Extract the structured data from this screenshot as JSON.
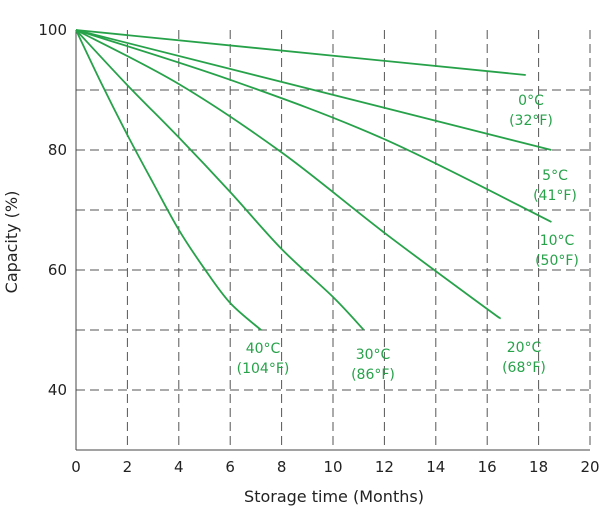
{
  "chart_data": {
    "type": "line",
    "xlabel": "Storage time (Months)",
    "ylabel": "Capacity (%)",
    "xlim": [
      0,
      20
    ],
    "ylim": [
      30,
      100
    ],
    "xticks": [
      "0",
      "2",
      "4",
      "6",
      "8",
      "10",
      "12",
      "14",
      "16",
      "18",
      "20"
    ],
    "yticks": [
      "40",
      "60",
      "80",
      "100"
    ],
    "grid": "dashed",
    "line_color": "#27a24a",
    "series": [
      {
        "label_line1": "0°C",
        "label_line2": "(32°F)",
        "points": [
          [
            0,
            100
          ],
          [
            17.5,
            92.5
          ]
        ]
      },
      {
        "label_line1": "5°C",
        "label_line2": "(41°F)",
        "points": [
          [
            0,
            100
          ],
          [
            18.5,
            80
          ]
        ]
      },
      {
        "label_line1": "10°C",
        "label_line2": "(50°F)",
        "points": [
          [
            0,
            100
          ],
          [
            6,
            91.7
          ],
          [
            12,
            81.8
          ],
          [
            18.5,
            68
          ]
        ]
      },
      {
        "label_line1": "20°C",
        "label_line2": "(68°F)",
        "points": [
          [
            0,
            100
          ],
          [
            4,
            91
          ],
          [
            8,
            79.6
          ],
          [
            12,
            66.2
          ],
          [
            16,
            53.5
          ],
          [
            16.5,
            52
          ]
        ]
      },
      {
        "label_line1": "30°C",
        "label_line2": "(86°F)",
        "points": [
          [
            0,
            100
          ],
          [
            2,
            90.8
          ],
          [
            4,
            82.1
          ],
          [
            6,
            73
          ],
          [
            8,
            63.5
          ],
          [
            10,
            55.5
          ],
          [
            11.2,
            50
          ]
        ]
      },
      {
        "label_line1": "40°C",
        "label_line2": "(104°F)",
        "points": [
          [
            0,
            100
          ],
          [
            1,
            91
          ],
          [
            2,
            82.5
          ],
          [
            3,
            74.5
          ],
          [
            4,
            66.7
          ],
          [
            5,
            60.2
          ],
          [
            6,
            54.5
          ],
          [
            7.2,
            50
          ]
        ]
      }
    ]
  }
}
